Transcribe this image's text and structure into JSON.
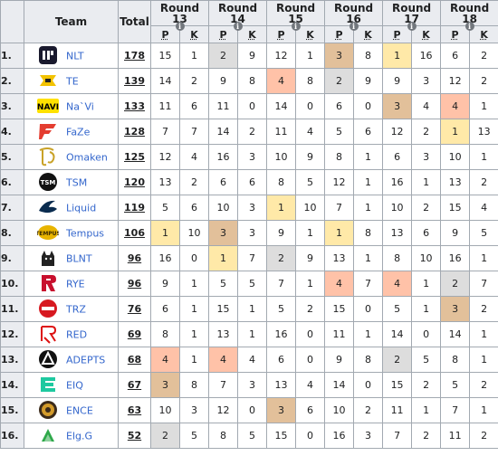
{
  "header": {
    "team_label": "Team",
    "total_label": "Total",
    "p_label": "P",
    "k_label": "K",
    "info_glyph": "i",
    "rounds": [
      "Round 13",
      "Round 14",
      "Round 15",
      "Round 16",
      "Round 17",
      "Round 18"
    ]
  },
  "rows": [
    {
      "pos": "1.",
      "team": "NLT",
      "logo": "nlt-logo-icon",
      "total": "178",
      "cells": [
        "15",
        "1",
        "2",
        "9",
        "12",
        "1",
        "3",
        "8",
        "1",
        "16",
        "6",
        "2"
      ],
      "hl": [
        "",
        "",
        "grey",
        "",
        "",
        "",
        "tan",
        "",
        "yellow",
        "",
        "",
        ""
      ]
    },
    {
      "pos": "2.",
      "team": "TE",
      "logo": "te-logo-icon",
      "total": "139",
      "cells": [
        "14",
        "2",
        "9",
        "8",
        "4",
        "8",
        "2",
        "9",
        "9",
        "3",
        "12",
        "2"
      ],
      "hl": [
        "",
        "",
        "",
        "",
        "salmon",
        "",
        "grey",
        "",
        "",
        "",
        "",
        ""
      ]
    },
    {
      "pos": "3.",
      "team": "Na`Vi",
      "logo": "navi-logo-icon",
      "total": "133",
      "cells": [
        "11",
        "6",
        "11",
        "0",
        "14",
        "0",
        "6",
        "0",
        "3",
        "4",
        "4",
        "1"
      ],
      "hl": [
        "",
        "",
        "",
        "",
        "",
        "",
        "",
        "",
        "tan",
        "",
        "salmon",
        ""
      ]
    },
    {
      "pos": "4.",
      "team": "FaZe",
      "logo": "faze-logo-icon",
      "total": "128",
      "cells": [
        "7",
        "7",
        "14",
        "2",
        "11",
        "4",
        "5",
        "6",
        "12",
        "2",
        "1",
        "13"
      ],
      "hl": [
        "",
        "",
        "",
        "",
        "",
        "",
        "",
        "",
        "",
        "",
        "yellow",
        ""
      ]
    },
    {
      "pos": "5.",
      "team": "Omaken",
      "logo": "omaken-logo-icon",
      "total": "125",
      "cells": [
        "12",
        "4",
        "16",
        "3",
        "10",
        "9",
        "8",
        "1",
        "6",
        "3",
        "10",
        "1"
      ],
      "hl": [
        "",
        "",
        "",
        "",
        "",
        "",
        "",
        "",
        "",
        "",
        "",
        ""
      ]
    },
    {
      "pos": "6.",
      "team": "TSM",
      "logo": "tsm-logo-icon",
      "total": "120",
      "cells": [
        "13",
        "2",
        "6",
        "6",
        "8",
        "5",
        "12",
        "1",
        "16",
        "1",
        "13",
        "2"
      ],
      "hl": [
        "",
        "",
        "",
        "",
        "",
        "",
        "",
        "",
        "",
        "",
        "",
        ""
      ]
    },
    {
      "pos": "7.",
      "team": "Liquid",
      "logo": "liquid-logo-icon",
      "total": "119",
      "cells": [
        "5",
        "6",
        "10",
        "3",
        "1",
        "10",
        "7",
        "1",
        "10",
        "2",
        "15",
        "4"
      ],
      "hl": [
        "",
        "",
        "",
        "",
        "yellow",
        "",
        "",
        "",
        "",
        "",
        "",
        ""
      ]
    },
    {
      "pos": "8.",
      "team": "Tempus",
      "logo": "tempus-logo-icon",
      "total": "106",
      "cells": [
        "1",
        "10",
        "3",
        "3",
        "9",
        "1",
        "1",
        "8",
        "13",
        "6",
        "9",
        "5"
      ],
      "hl": [
        "yellow",
        "",
        "tan",
        "",
        "",
        "",
        "yellow",
        "",
        "",
        "",
        "",
        ""
      ]
    },
    {
      "pos": "9.",
      "team": "BLNT",
      "logo": "blnt-logo-icon",
      "total": "96",
      "cells": [
        "16",
        "0",
        "1",
        "7",
        "2",
        "9",
        "13",
        "1",
        "8",
        "10",
        "16",
        "1"
      ],
      "hl": [
        "",
        "",
        "yellow",
        "",
        "grey",
        "",
        "",
        "",
        "",
        "",
        "",
        ""
      ]
    },
    {
      "pos": "10.",
      "team": "RYE",
      "logo": "rye-logo-icon",
      "total": "96",
      "cells": [
        "9",
        "1",
        "5",
        "5",
        "7",
        "1",
        "4",
        "7",
        "4",
        "1",
        "2",
        "7"
      ],
      "hl": [
        "",
        "",
        "",
        "",
        "",
        "",
        "salmon",
        "",
        "salmon",
        "",
        "grey",
        ""
      ]
    },
    {
      "pos": "11.",
      "team": "TRZ",
      "logo": "trz-logo-icon",
      "total": "76",
      "cells": [
        "6",
        "1",
        "15",
        "1",
        "5",
        "2",
        "15",
        "0",
        "5",
        "1",
        "3",
        "2"
      ],
      "hl": [
        "",
        "",
        "",
        "",
        "",
        "",
        "",
        "",
        "",
        "",
        "tan",
        ""
      ]
    },
    {
      "pos": "12.",
      "team": "RED",
      "logo": "red-logo-icon",
      "total": "69",
      "cells": [
        "8",
        "1",
        "13",
        "1",
        "16",
        "0",
        "11",
        "1",
        "14",
        "0",
        "14",
        "1"
      ],
      "hl": [
        "",
        "",
        "",
        "",
        "",
        "",
        "",
        "",
        "",
        "",
        "",
        ""
      ]
    },
    {
      "pos": "13.",
      "team": "ADEPTS",
      "logo": "adepts-logo-icon",
      "total": "68",
      "cells": [
        "4",
        "1",
        "4",
        "4",
        "6",
        "0",
        "9",
        "8",
        "2",
        "5",
        "8",
        "1"
      ],
      "hl": [
        "salmon",
        "",
        "salmon",
        "",
        "",
        "",
        "",
        "",
        "grey",
        "",
        "",
        ""
      ]
    },
    {
      "pos": "14.",
      "team": "EIQ",
      "logo": "eiq-logo-icon",
      "total": "67",
      "cells": [
        "3",
        "8",
        "7",
        "3",
        "13",
        "4",
        "14",
        "0",
        "15",
        "2",
        "5",
        "2"
      ],
      "hl": [
        "tan",
        "",
        "",
        "",
        "",
        "",
        "",
        "",
        "",
        "",
        "",
        ""
      ]
    },
    {
      "pos": "15.",
      "team": "ENCE",
      "logo": "ence-logo-icon",
      "total": "63",
      "cells": [
        "10",
        "3",
        "12",
        "0",
        "3",
        "6",
        "10",
        "2",
        "11",
        "1",
        "7",
        "1"
      ],
      "hl": [
        "",
        "",
        "",
        "",
        "tan",
        "",
        "",
        "",
        "",
        "",
        "",
        ""
      ]
    },
    {
      "pos": "16.",
      "team": "Elg.G",
      "logo": "elgg-logo-icon",
      "total": "52",
      "cells": [
        "2",
        "5",
        "8",
        "5",
        "15",
        "0",
        "16",
        "3",
        "7",
        "2",
        "11",
        "2"
      ],
      "hl": [
        "grey",
        "",
        "",
        "",
        "",
        "",
        "",
        "",
        "",
        "",
        "",
        ""
      ]
    }
  ],
  "colors": {
    "header_bg": "#eaecf0",
    "border": "#a2a9b1",
    "link": "#3366cc",
    "yellow": "#ffe9a8",
    "grey": "#dddddd",
    "tan": "#e2c09a",
    "salmon": "#ffc2a8"
  }
}
